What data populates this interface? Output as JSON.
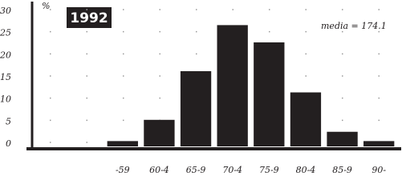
{
  "chart_data": {
    "type": "bar",
    "title": "1992",
    "y_label": "%",
    "annotation": "media = 174.1",
    "categories": [
      "-59",
      "60-4",
      "65-9",
      "70-4",
      "75-9",
      "80-4",
      "85-9",
      "90-"
    ],
    "values": [
      1.2,
      6,
      17,
      27.4,
      23.5,
      12.2,
      3.3,
      1.2
    ],
    "color": "#231f20",
    "ylim": [
      0,
      30
    ],
    "yticks": [
      0,
      5,
      10,
      15,
      20,
      25,
      30
    ],
    "grid": true
  }
}
